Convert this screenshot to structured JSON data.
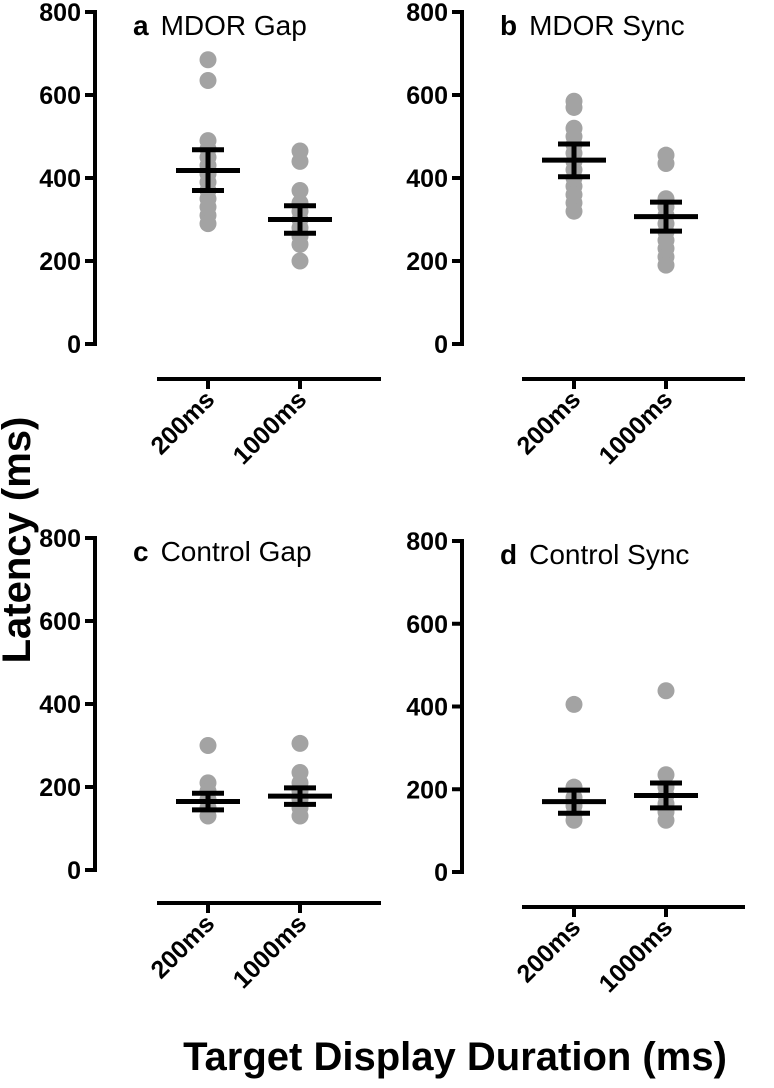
{
  "chart_data": {
    "type": "scatter",
    "ylabel": "Latency (ms)",
    "xlabel": "Target Display Duration (ms)",
    "ylim": [
      0,
      800
    ],
    "yticks": [
      "0",
      "200",
      "400",
      "600",
      "800"
    ],
    "categories": [
      "200ms",
      "1000ms"
    ],
    "colors": {
      "points": "#a3a3a3",
      "summary": "#000000"
    },
    "panels": [
      {
        "letter": "a",
        "title": "MDOR Gap",
        "series": [
          {
            "category": "200ms",
            "points": [
              685,
              635,
              490,
              470,
              450,
              430,
              410,
              390,
              370,
              350,
              330,
              310,
              290
            ],
            "mean": 418,
            "err_low": 370,
            "err_high": 468
          },
          {
            "category": "1000ms",
            "points": [
              465,
              440,
              370,
              340,
              320,
              300,
              280,
              260,
              240,
              200
            ],
            "mean": 300,
            "err_low": 267,
            "err_high": 333
          }
        ]
      },
      {
        "letter": "b",
        "title": "MDOR Sync",
        "series": [
          {
            "category": "200ms",
            "points": [
              585,
              570,
              520,
              500,
              480,
              460,
              440,
              420,
              400,
              380,
              360,
              340,
              320
            ],
            "mean": 443,
            "err_low": 403,
            "err_high": 482
          },
          {
            "category": "1000ms",
            "points": [
              455,
              435,
              350,
              330,
              310,
              290,
              270,
              250,
              230,
              210,
              190
            ],
            "mean": 307,
            "err_low": 272,
            "err_high": 342
          }
        ]
      },
      {
        "letter": "c",
        "title": "Control Gap",
        "series": [
          {
            "category": "200ms",
            "points": [
              300,
              210,
              190,
              170,
              150,
              130
            ],
            "mean": 165,
            "err_low": 145,
            "err_high": 185
          },
          {
            "category": "1000ms",
            "points": [
              305,
              235,
              210,
              190,
              170,
              150,
              130
            ],
            "mean": 178,
            "err_low": 158,
            "err_high": 198
          }
        ]
      },
      {
        "letter": "d",
        "title": "Control Sync",
        "series": [
          {
            "category": "200ms",
            "points": [
              405,
              205,
              180,
              160,
              140,
              125
            ],
            "mean": 170,
            "err_low": 142,
            "err_high": 198
          },
          {
            "category": "1000ms",
            "points": [
              438,
              235,
              205,
              185,
              165,
              145,
              125
            ],
            "mean": 185,
            "err_low": 155,
            "err_high": 215
          }
        ]
      }
    ]
  }
}
